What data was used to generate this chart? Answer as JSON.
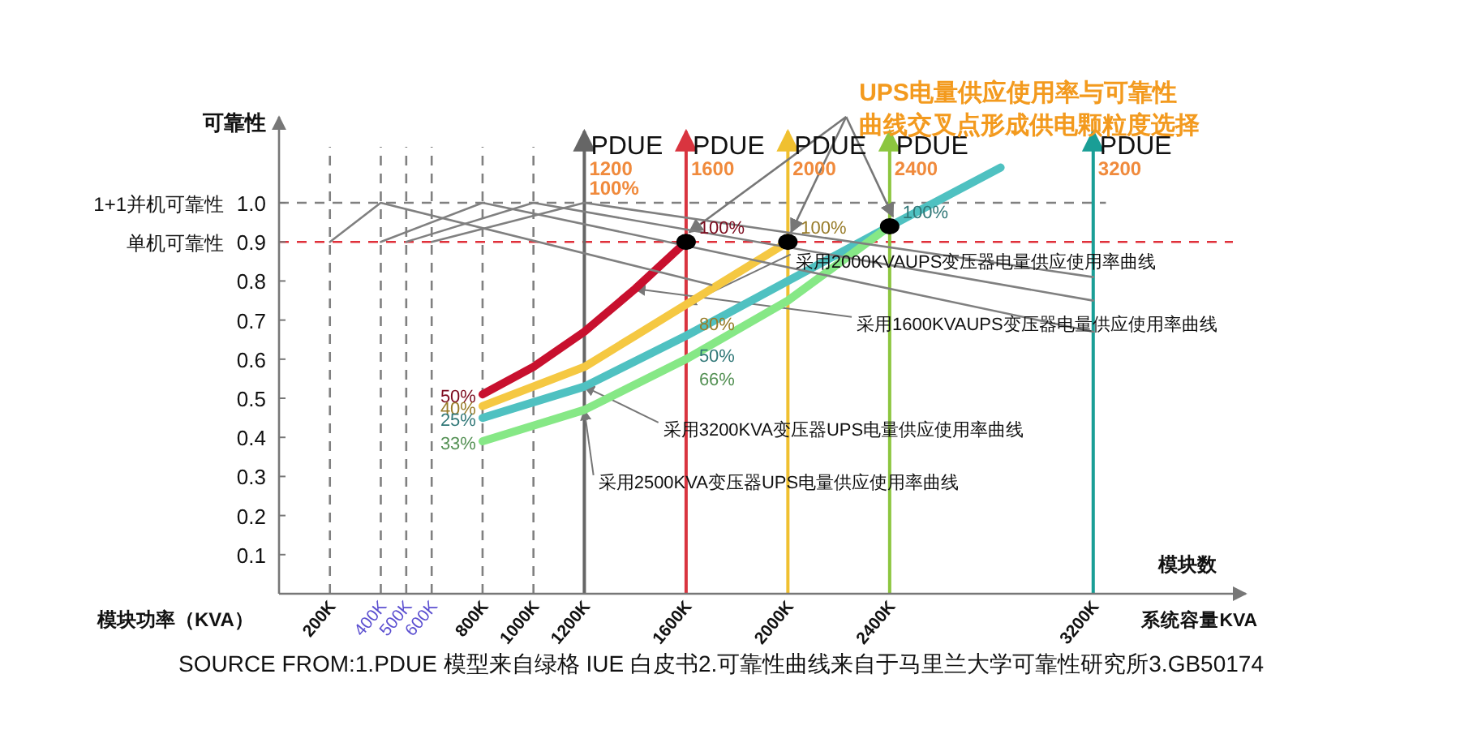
{
  "chart_data": {
    "type": "line",
    "ylabel": "可靠性",
    "xlabel": "系统容量KVA",
    "xlim": [
      0,
      3800
    ],
    "ylim": [
      0,
      1.22
    ],
    "xticks": [
      {
        "value": 200,
        "label": "200K"
      },
      {
        "value": 400,
        "label": "400K"
      },
      {
        "value": 500,
        "label": "500K"
      },
      {
        "value": 600,
        "label": "600K"
      },
      {
        "value": 800,
        "label": "800K"
      },
      {
        "value": 1000,
        "label": "1000K"
      },
      {
        "value": 1200,
        "label": "1200K"
      },
      {
        "value": 1600,
        "label": "1600K"
      },
      {
        "value": 2000,
        "label": "2000K"
      },
      {
        "value": 2400,
        "label": "2400K"
      },
      {
        "value": 3200,
        "label": "3200K"
      }
    ],
    "yticks": [
      0.1,
      0.2,
      0.3,
      0.4,
      0.5,
      0.6,
      0.7,
      0.8,
      0.9,
      {
        "value": 1,
        "label": "1.0"
      }
    ],
    "series": [
      {
        "name": "采用1600KVAUPS变压器电量供应使用率曲线",
        "color": "#c8102e",
        "x": [
          800,
          1000,
          1200,
          1400,
          1600
        ],
        "values": [
          0.51,
          0.58,
          0.67,
          0.78,
          0.9
        ]
      },
      {
        "name": "采用2000KVAUPS变压器电量供应使用率曲线",
        "color": "#f5c842",
        "x": [
          800,
          1200,
          1400,
          1600,
          2000
        ],
        "values": [
          0.48,
          0.58,
          0.66,
          0.74,
          0.9
        ]
      },
      {
        "name": "采用3200KVA变压器UPS电量供应使用率曲线",
        "color": "#4fc1c1",
        "x": [
          800,
          1200,
          1600,
          2000,
          2400,
          2836
        ],
        "values": [
          0.45,
          0.53,
          0.66,
          0.8,
          0.94,
          1.09
        ]
      },
      {
        "name": "采用2500KVA变压器UPS电量供应使用率曲线",
        "color": "#86e886",
        "x": [
          800,
          1200,
          1600,
          2000,
          2400
        ],
        "values": [
          0.39,
          0.47,
          0.6,
          0.75,
          0.94
        ]
      },
      {
        "color": "#808080",
        "x": [
          200,
          400,
          1700
        ],
        "values": [
          0.9,
          1.0,
          0.79
        ]
      },
      {
        "color": "#808080",
        "x": [
          400,
          800,
          3200
        ],
        "values": [
          0.9,
          1.0,
          0.67
        ]
      },
      {
        "color": "#808080",
        "x": [
          500,
          1000,
          3200
        ],
        "values": [
          0.9,
          1.0,
          0.75
        ]
      },
      {
        "color": "#808080",
        "x": [
          600,
          1200,
          3200
        ],
        "values": [
          0.9,
          1.0,
          0.81
        ]
      },
      {
        "type": "scatter",
        "color": "#000000",
        "x": [
          1600,
          2000,
          2400
        ],
        "values": [
          0.9,
          0.9,
          0.94
        ]
      }
    ],
    "ref_lines": [
      {
        "axis": "y",
        "value": 1.0,
        "label": "1+1并机可靠性",
        "color": "#808080",
        "line_style": "dashed"
      },
      {
        "axis": "y",
        "value": 0.9,
        "label": "单机可靠性",
        "color": "#e0303a",
        "line_style": "dashed"
      },
      {
        "axis": "x",
        "value": 200,
        "color": "#808080",
        "line_style": "dashed"
      },
      {
        "axis": "x",
        "value": 400,
        "color": "#808080",
        "line_style": "dashed"
      },
      {
        "axis": "x",
        "value": 500,
        "color": "#808080",
        "line_style": "dashed"
      },
      {
        "axis": "x",
        "value": 600,
        "color": "#808080",
        "line_style": "dashed"
      },
      {
        "axis": "x",
        "value": 800,
        "color": "#808080",
        "line_style": "dashed"
      },
      {
        "axis": "x",
        "value": 1000,
        "color": "#808080",
        "line_style": "dashed"
      },
      {
        "axis": "x",
        "value": 1200,
        "label": "PDUE",
        "color": "#666666",
        "line_style": "solid"
      },
      {
        "axis": "x",
        "value": 1600,
        "label": "PDUE",
        "color": "#d9343f",
        "line_style": "solid"
      },
      {
        "axis": "x",
        "value": 2000,
        "label": "PDUE",
        "color": "#f0c030",
        "line_style": "solid"
      },
      {
        "axis": "x",
        "value": 2400,
        "label": "PDUE",
        "color": "#8cc63f",
        "line_style": "solid"
      },
      {
        "axis": "x",
        "value": 3200,
        "label": "PDUE",
        "color": "#1a9e96",
        "line_style": "solid"
      }
    ],
    "annotations": [
      {
        "text": "UPS电量供应使用率与可靠性曲线交叉点形成供电颗粒度选择",
        "x": 2000,
        "y": 0.9
      },
      "SOURCE FROM:1.PDUE 模型来自绿格 IUE 白皮书2.可靠性曲线来自于马里兰大学可靠性研究所3.GB50174",
      "模块功率（KVA）",
      "模块数",
      {
        "text": "1200",
        "x": 1200,
        "y": 1.07
      },
      {
        "text": "100%",
        "x": 1200,
        "y": 1.02
      },
      {
        "text": "1600",
        "x": 1600,
        "y": 1.07
      },
      {
        "text": "2000",
        "x": 2000,
        "y": 1.07
      },
      {
        "text": "2400",
        "x": 2400,
        "y": 1.07
      },
      {
        "text": "3200",
        "x": 3200,
        "y": 1.07
      },
      {
        "text": "50%",
        "x": 800,
        "y": 0.51
      },
      {
        "text": "100%",
        "x": 1600,
        "y": 0.9
      },
      {
        "text": "40%",
        "x": 800,
        "y": 0.48
      },
      {
        "text": "80%",
        "x": 1600,
        "y": 0.74
      },
      {
        "text": "100%",
        "x": 2000,
        "y": 0.9
      },
      {
        "text": "25%",
        "x": 800,
        "y": 0.45
      },
      {
        "text": "50%",
        "x": 1600,
        "y": 0.66
      },
      {
        "text": "33%",
        "x": 800,
        "y": 0.39
      },
      {
        "text": "66%",
        "x": 1600,
        "y": 0.6
      },
      {
        "text": "100%",
        "x": 2400,
        "y": 0.94
      }
    ]
  }
}
